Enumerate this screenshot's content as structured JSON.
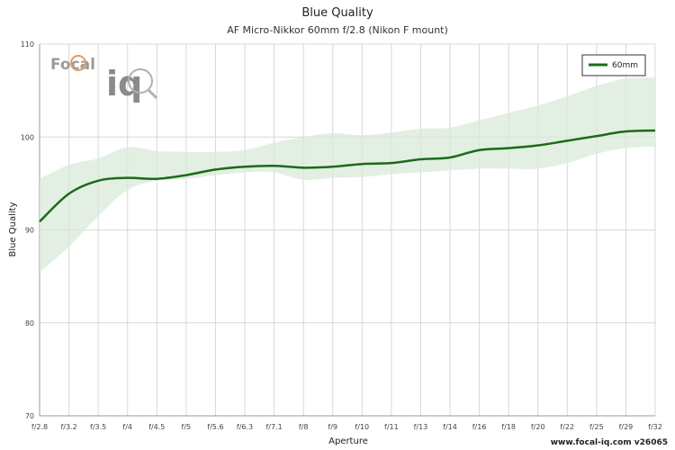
{
  "title": "Blue Quality",
  "subtitle": "AF Micro-Nikkor 60mm f/2.8 (Nikon F mount)",
  "footer": "www.focal-iq.com  v26065",
  "logo": {
    "word1": "Focal",
    "word2": "iq"
  },
  "colors": {
    "line": "#1a6b1a",
    "band": "#d9ead9",
    "grid": "#d8d8d8"
  },
  "chart_data": {
    "type": "line",
    "title": "Blue Quality",
    "subtitle": "AF Micro-Nikkor 60mm f/2.8 (Nikon F mount)",
    "xlabel": "Aperture",
    "ylabel": "Blue Quality",
    "ylim": [
      70,
      110
    ],
    "yticks": [
      70,
      80,
      90,
      100,
      110
    ],
    "grid": true,
    "legend_position": "top-right",
    "categories": [
      "f/2.8",
      "f/3.2",
      "f/3.5",
      "f/4",
      "f/4.5",
      "f/5",
      "f/5.6",
      "f/6.3",
      "f/7.1",
      "f/8",
      "f/9",
      "f/10",
      "f/11",
      "f/13",
      "f/14",
      "f/16",
      "f/18",
      "f/20",
      "f/22",
      "f/25",
      "f/29",
      "f/32"
    ],
    "series": [
      {
        "name": "60mm",
        "values": [
          90.9,
          93.9,
          95.3,
          95.6,
          95.5,
          95.9,
          96.5,
          96.8,
          96.9,
          96.7,
          96.8,
          97.1,
          97.2,
          97.6,
          97.8,
          98.6,
          98.8,
          99.1,
          99.6,
          100.1,
          100.6,
          100.7
        ],
        "upper": [
          95.5,
          97.0,
          97.7,
          98.9,
          98.5,
          98.4,
          98.4,
          98.6,
          99.4,
          100.0,
          100.4,
          100.2,
          100.5,
          100.9,
          101.0,
          101.8,
          102.6,
          103.4,
          104.4,
          105.5,
          106.3,
          106.4
        ],
        "lower": [
          85.4,
          88.2,
          91.5,
          94.3,
          95.3,
          95.5,
          95.9,
          96.2,
          96.2,
          95.4,
          95.6,
          95.7,
          96.0,
          96.2,
          96.4,
          96.6,
          96.6,
          96.6,
          97.2,
          98.2,
          98.8,
          99.0
        ]
      }
    ]
  }
}
